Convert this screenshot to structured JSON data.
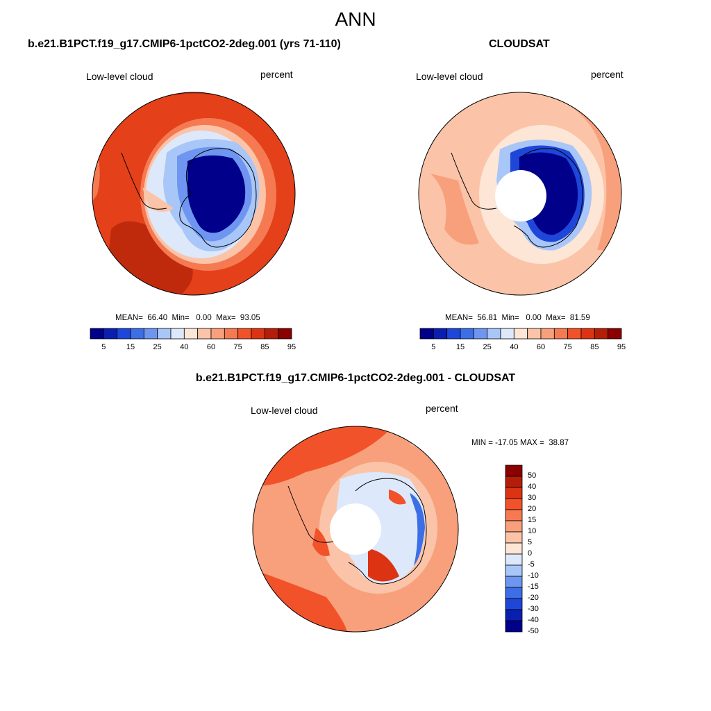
{
  "title": "ANN",
  "panels": {
    "model": {
      "title": "b.e21.B1PCT.f19_g17.CMIP6-1pctCO2-2deg.001 (yrs 71-110)",
      "variable": "Low-level cloud",
      "units": "percent",
      "stats": "MEAN=  66.40  Min=   0.00  Max=  93.05",
      "mean": 66.4,
      "min": 0.0,
      "max": 93.05
    },
    "obs": {
      "title": "CLOUDSAT",
      "variable": "Low-level cloud",
      "units": "percent",
      "stats": "MEAN=  56.81  Min=   0.00  Max=  81.59",
      "mean": 56.81,
      "min": 0.0,
      "max": 81.59
    },
    "diff": {
      "title": "b.e21.B1PCT.f19_g17.CMIP6-1pctCO2-2deg.001 - CLOUDSAT",
      "variable": "Low-level cloud",
      "units": "percent",
      "stats": "MIN = -17.05 MAX =  38.87",
      "min": -17.05,
      "max": 38.87
    }
  },
  "colorbar_abs": {
    "colors": [
      "#00008b",
      "#0a1fb0",
      "#1e46d8",
      "#3c6ee6",
      "#6e96f0",
      "#a8c6f8",
      "#dde8fa",
      "#fde6d6",
      "#fbc4a8",
      "#f8a07c",
      "#f57a52",
      "#f2522a",
      "#dc3412",
      "#b41e08",
      "#8b0000"
    ],
    "labels": [
      "5",
      "15",
      "25",
      "40",
      "60",
      "75",
      "85",
      "95"
    ]
  },
  "colorbar_diff": {
    "colors": [
      "#8b0000",
      "#b41e08",
      "#dc3412",
      "#f2522a",
      "#f57a52",
      "#f8a07c",
      "#fbc4a8",
      "#fde6d6",
      "#dde8fa",
      "#a8c6f8",
      "#6e96f0",
      "#3c6ee6",
      "#1e46d8",
      "#0a1fb0",
      "#00008b"
    ],
    "labels": [
      "50",
      "40",
      "30",
      "20",
      "15",
      "10",
      "5",
      "0",
      "-5",
      "-10",
      "-15",
      "-20",
      "-30",
      "-40",
      "-50"
    ]
  },
  "map_colors": {
    "ocean_model": "#e4401a",
    "ocean_model_dark": "#bf2a0c",
    "ocean_model_light": "#f57a52",
    "ocean_obs": "#fbc4a8",
    "ocean_obs_dark": "#f8a07c",
    "diff_ocean": "#f8a07c",
    "diff_ocean_dark": "#f2522a",
    "land_blue_dark": "#00008b",
    "land_blue": "#1e46d8",
    "land_blue_light": "#a8c6f8",
    "land_pale": "#dde8fa",
    "missing": "#ffffff"
  }
}
